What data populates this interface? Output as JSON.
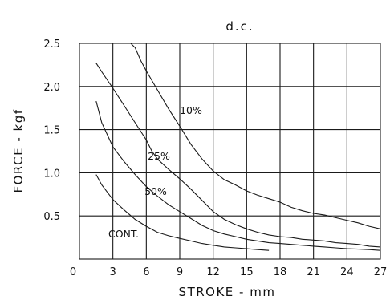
{
  "chart_data": {
    "type": "line",
    "title": "d.c.",
    "xlabel": "STROKE - mm",
    "ylabel": "FORCE - kgf",
    "xlim": [
      0,
      27
    ],
    "ylim": [
      0,
      2.5
    ],
    "x_ticks": [
      "0",
      "3",
      "6",
      "9",
      "12",
      "15",
      "18",
      "21",
      "24",
      "27"
    ],
    "y_ticks": [
      "0.5",
      "1.0",
      "1.5",
      "2.0",
      "2.5"
    ],
    "grid": true,
    "series": [
      {
        "name": "10%",
        "points": [
          [
            4.6,
            2.5
          ],
          [
            5.0,
            2.45
          ],
          [
            5.5,
            2.3
          ],
          [
            6,
            2.18
          ],
          [
            7,
            1.96
          ],
          [
            8,
            1.74
          ],
          [
            9,
            1.54
          ],
          [
            10,
            1.33
          ],
          [
            11,
            1.16
          ],
          [
            12,
            1.02
          ],
          [
            13,
            0.92
          ],
          [
            14,
            0.86
          ],
          [
            15,
            0.79
          ],
          [
            16,
            0.74
          ],
          [
            17,
            0.7
          ],
          [
            18,
            0.66
          ],
          [
            19,
            0.6
          ],
          [
            20,
            0.56
          ],
          [
            21,
            0.53
          ],
          [
            22,
            0.51
          ],
          [
            23,
            0.48
          ],
          [
            24,
            0.45
          ],
          [
            25,
            0.42
          ],
          [
            26,
            0.38
          ],
          [
            27,
            0.35
          ]
        ]
      },
      {
        "name": "25%",
        "points": [
          [
            1.5,
            2.27
          ],
          [
            2,
            2.17
          ],
          [
            3,
            1.98
          ],
          [
            4,
            1.78
          ],
          [
            5,
            1.58
          ],
          [
            6,
            1.38
          ],
          [
            6.5,
            1.25
          ],
          [
            7,
            1.16
          ],
          [
            8,
            1.04
          ],
          [
            9,
            0.93
          ],
          [
            10,
            0.81
          ],
          [
            11,
            0.68
          ],
          [
            12,
            0.55
          ],
          [
            13,
            0.46
          ],
          [
            14,
            0.4
          ],
          [
            15,
            0.35
          ],
          [
            16,
            0.31
          ],
          [
            17,
            0.28
          ],
          [
            18,
            0.26
          ],
          [
            19,
            0.25
          ],
          [
            20,
            0.23
          ],
          [
            21,
            0.22
          ],
          [
            22,
            0.21
          ],
          [
            23,
            0.19
          ],
          [
            24,
            0.18
          ],
          [
            25,
            0.17
          ],
          [
            26,
            0.15
          ],
          [
            27,
            0.14
          ]
        ]
      },
      {
        "name": "50%",
        "points": [
          [
            1.5,
            1.83
          ],
          [
            2,
            1.58
          ],
          [
            3,
            1.3
          ],
          [
            4,
            1.13
          ],
          [
            5,
            0.98
          ],
          [
            6,
            0.84
          ],
          [
            7,
            0.73
          ],
          [
            8,
            0.63
          ],
          [
            9,
            0.55
          ],
          [
            10,
            0.47
          ],
          [
            11,
            0.39
          ],
          [
            12,
            0.33
          ],
          [
            13,
            0.29
          ],
          [
            14,
            0.26
          ],
          [
            15,
            0.23
          ],
          [
            16,
            0.21
          ],
          [
            17,
            0.19
          ],
          [
            18,
            0.18
          ],
          [
            19,
            0.17
          ],
          [
            20,
            0.16
          ],
          [
            21,
            0.15
          ],
          [
            22,
            0.14
          ],
          [
            23,
            0.13
          ],
          [
            24,
            0.12
          ],
          [
            25,
            0.115
          ],
          [
            26,
            0.11
          ],
          [
            27,
            0.1
          ]
        ]
      },
      {
        "name": "CONT.",
        "points": [
          [
            1.5,
            0.98
          ],
          [
            2,
            0.86
          ],
          [
            3,
            0.69
          ],
          [
            4,
            0.57
          ],
          [
            5,
            0.46
          ],
          [
            6,
            0.38
          ],
          [
            7,
            0.31
          ],
          [
            8,
            0.27
          ],
          [
            9,
            0.24
          ],
          [
            10,
            0.21
          ],
          [
            11,
            0.18
          ],
          [
            12,
            0.16
          ],
          [
            13,
            0.14
          ],
          [
            14,
            0.13
          ],
          [
            15,
            0.12
          ],
          [
            16,
            0.11
          ],
          [
            17,
            0.1
          ]
        ]
      }
    ]
  }
}
